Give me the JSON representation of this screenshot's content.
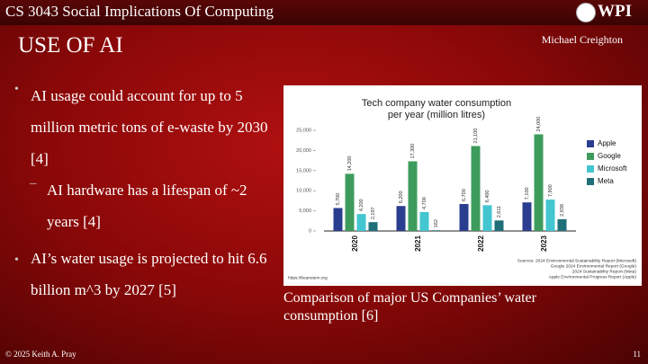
{
  "header": {
    "course": "CS 3043 Social Implications Of Computing",
    "logo": "WPI"
  },
  "slide": {
    "title": "USE OF AI",
    "author": "Michael Creighton",
    "bullets": [
      {
        "text": "AI usage could account for up to 5 million metric tons of e-waste by 2030 [4]",
        "sub": [
          "AI hardware has a lifespan of ~2 years [4]"
        ]
      },
      {
        "text": "AI’s water usage is projected to hit 6.6 billion m^3 by 2027 [5]"
      }
    ],
    "caption": "Comparison of major US Companies’ water consumption [6]"
  },
  "chart_data": {
    "type": "bar",
    "title": [
      "Tech company water consumption",
      "per year (million litres)"
    ],
    "categories": [
      "2020",
      "2021",
      "2022",
      "2023"
    ],
    "series": [
      {
        "name": "Apple",
        "color": "#2a3d8f",
        "values": [
          5700,
          6200,
          6700,
          7100
        ],
        "value_labels": [
          "5,700",
          "6,200",
          "6,700",
          "7,100"
        ]
      },
      {
        "name": "Google",
        "color": "#3d9c5c",
        "values": [
          14200,
          17300,
          21100,
          24000
        ],
        "value_labels": [
          "14,200",
          "17,300",
          "21,100",
          "24,000"
        ]
      },
      {
        "name": "Microsoft",
        "color": "#43c6d0",
        "values": [
          4200,
          4700,
          6400,
          7800
        ],
        "value_labels": [
          "4,200",
          "4,700",
          "6,400",
          "7,800"
        ]
      },
      {
        "name": "Meta",
        "color": "#1f6f78",
        "values": [
          2197,
          162,
          2611,
          2938
        ],
        "value_labels": [
          "2,197",
          "162",
          "2,611",
          "2,938"
        ]
      }
    ],
    "ylim": [
      0,
      25000
    ],
    "yticks": [
      0,
      {
        "value": 5000,
        "label": "5,000"
      },
      {
        "value": 10000,
        "label": "10,000"
      },
      {
        "value": 15000,
        "label": "15,000"
      },
      {
        "value": 20000,
        "label": "20,000"
      },
      {
        "value": 25000,
        "label": "25,000"
      }
    ],
    "sources": [
      "Sources: 2024 Environmental Sustainability Report (Microsoft)",
      "Google 2024 Environmental Report (Google)",
      "2024 Sustainability Report (Meta)",
      "Apple Environmental Progress Report (Apple)"
    ],
    "url": "https://beanstem.org"
  },
  "footer": {
    "copyright": "© 2025 Keith A. Pray",
    "page": "11"
  }
}
